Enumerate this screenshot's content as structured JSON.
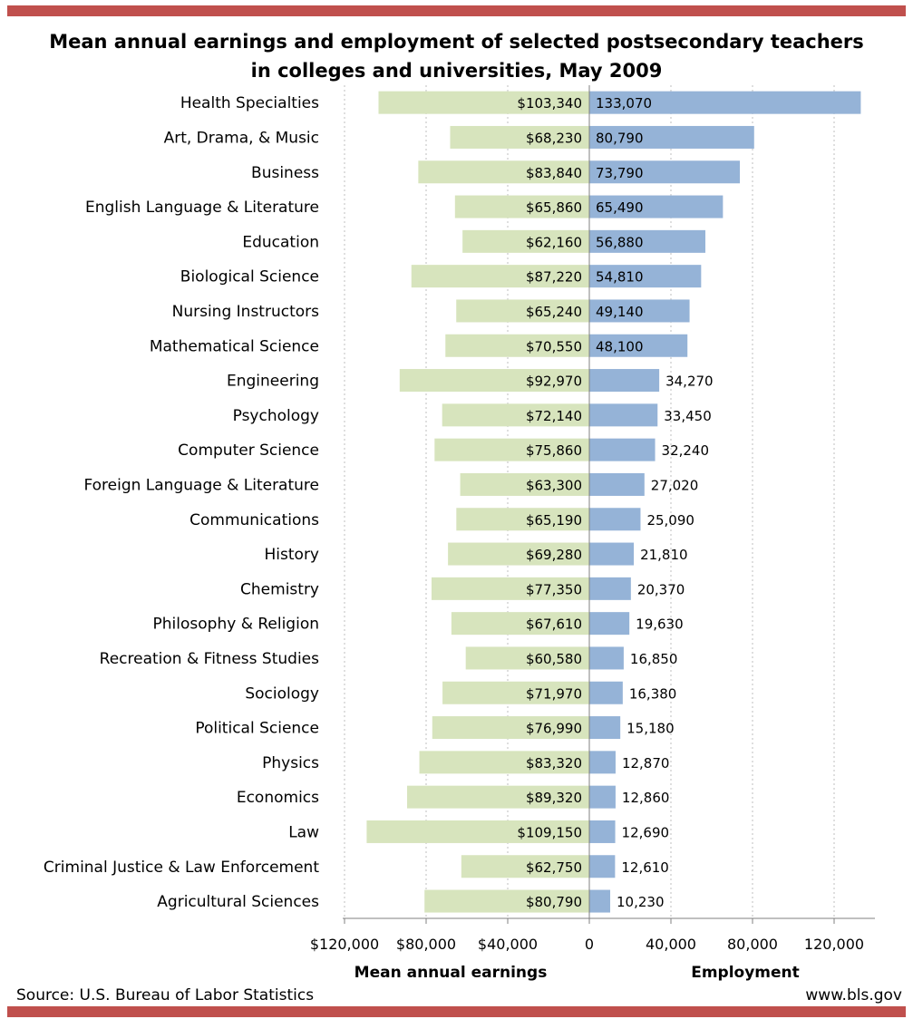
{
  "title_line1": "Mean annual earnings and employment of selected postsecondary teachers",
  "title_line2": "in colleges and universities, May 2009",
  "source": "Source: U.S. Bureau of Labor Statistics",
  "website": "www.bls.gov",
  "colors": {
    "earnings_bar": "#d7e4bd",
    "employment_bar": "#95b3d7",
    "rule": "#c0504d",
    "grid": "#bfbfbf"
  },
  "chart_data": {
    "type": "bar",
    "orientation": "horizontal",
    "layout": "butterfly",
    "categories": [
      "Health Specialties",
      "Art, Drama,  & Music",
      "Business",
      "English Language  & Literature",
      "Education",
      "Biological Science",
      "Nursing Instructors",
      "Mathematical  Science",
      "Engineering",
      "Psychology",
      "Computer Science",
      "Foreign Language & Literature",
      "Communications",
      "History",
      "Chemistry",
      "Philosophy & Religion",
      "Recreation & Fitness Studies",
      "Sociology",
      "Political Science",
      "Physics",
      "Economics",
      "Law",
      "Criminal Justice & Law Enforcement",
      "Agricultural Sciences"
    ],
    "series": [
      {
        "name": "Mean annual earnings",
        "axis_label": "Mean annual  earnings",
        "values": [
          103340,
          68230,
          83840,
          65860,
          62160,
          87220,
          65240,
          70550,
          92970,
          72140,
          75860,
          63300,
          65190,
          69280,
          77350,
          67610,
          60580,
          71970,
          76990,
          83320,
          89320,
          109150,
          62750,
          80790
        ],
        "labels": [
          "$103,340",
          "$68,230",
          "$83,840",
          "$65,860",
          "$62,160",
          "$87,220",
          "$65,240",
          "$70,550",
          "$92,970",
          "$72,140",
          "$75,860",
          "$63,300",
          "$65,190",
          "$69,280",
          "$77,350",
          "$67,610",
          "$60,580",
          "$71,970",
          "$76,990",
          "$83,320",
          "$89,320",
          "$109,150",
          "$62,750",
          "$80,790"
        ],
        "ticks": [
          120000,
          80000,
          40000,
          0
        ],
        "tick_labels": [
          "$120,000",
          "$80,000",
          "$40,000",
          "0"
        ],
        "range": [
          0,
          120000
        ]
      },
      {
        "name": "Employment",
        "axis_label": "Employment",
        "values": [
          133070,
          80790,
          73790,
          65490,
          56880,
          54810,
          49140,
          48100,
          34270,
          33450,
          32240,
          27020,
          25090,
          21810,
          20370,
          19630,
          16850,
          16380,
          15180,
          12870,
          12860,
          12690,
          12610,
          10230
        ],
        "labels": [
          "133,070",
          "80,790",
          "73,790",
          "65,490",
          "56,880",
          "54,810",
          "49,140",
          "48,100",
          "34,270",
          "33,450",
          "32,240",
          "27,020",
          "25,090",
          "21,810",
          "20,370",
          "19,630",
          "16,850",
          "16,380",
          "15,180",
          "12,870",
          "12,860",
          "12,690",
          "12,610",
          "10,230"
        ],
        "ticks": [
          40000,
          80000,
          120000
        ],
        "tick_labels": [
          "40,000",
          "80,000",
          "120,000"
        ],
        "range": [
          0,
          140000
        ]
      }
    ],
    "grid": true,
    "legend": "none"
  }
}
